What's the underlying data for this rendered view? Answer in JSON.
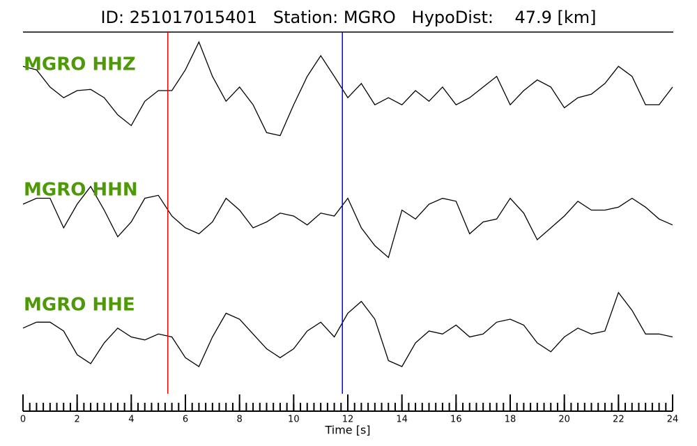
{
  "chart_data": {
    "type": "seismogram",
    "title": "ID: 251017015401   Station: MGRO   HypoDist:    47.9 [km]",
    "xlabel": "Time [s]",
    "xlim": [
      0,
      24
    ],
    "xticks": [
      0,
      2,
      4,
      6,
      8,
      10,
      12,
      14,
      16,
      18,
      20,
      22,
      24
    ],
    "minor_xtick_step": 0.25,
    "ylim": [
      -1,
      1
    ],
    "label_color": "#4e9a06",
    "markers": [
      {
        "x": 5.35,
        "color": "#ff0000"
      },
      {
        "x": 11.8,
        "color": "#0000ff"
      }
    ],
    "x": [
      0,
      0.5,
      1,
      1.5,
      2,
      2.5,
      3,
      3.5,
      4,
      4.5,
      5,
      5.5,
      6,
      6.5,
      7,
      7.5,
      8,
      8.5,
      9,
      9.5,
      10,
      10.5,
      11,
      11.5,
      12,
      12.5,
      13,
      13.5,
      14,
      14.5,
      15,
      15.5,
      16,
      16.5,
      17,
      17.5,
      18,
      18.5,
      19,
      19.5,
      20,
      20.5,
      21,
      21.5,
      22,
      22.5,
      23,
      23.5,
      24
    ],
    "series": [
      {
        "name": "MGRO HHZ",
        "color": "#000000",
        "values": [
          0.41,
          0.35,
          0.06,
          -0.12,
          0,
          0.02,
          -0.12,
          -0.41,
          -0.59,
          -0.18,
          0,
          0,
          0.35,
          0.82,
          0.24,
          -0.18,
          0.06,
          -0.24,
          -0.71,
          -0.76,
          -0.24,
          0.24,
          0.59,
          0.24,
          -0.12,
          0.12,
          -0.24,
          -0.12,
          -0.24,
          0,
          -0.18,
          0.06,
          -0.24,
          -0.12,
          0.06,
          0.24,
          -0.24,
          0,
          0.18,
          0.06,
          -0.29,
          -0.12,
          -0.06,
          0.12,
          0.41,
          0.24,
          -0.24,
          -0.24,
          0.06
        ]
      },
      {
        "name": "MGRO HHN",
        "color": "#000000",
        "values": [
          0.2,
          0.3,
          0.3,
          -0.2,
          0.2,
          0.5,
          0.1,
          -0.35,
          -0.1,
          0.3,
          0.35,
          0,
          -0.2,
          -0.3,
          -0.1,
          0.3,
          0.1,
          -0.2,
          -0.1,
          0.05,
          0,
          -0.15,
          0.05,
          0,
          0.3,
          -0.2,
          -0.5,
          -0.7,
          0.1,
          -0.05,
          0.2,
          0.3,
          0.25,
          -0.3,
          -0.1,
          -0.05,
          0.3,
          0.05,
          -0.4,
          -0.2,
          0,
          0.25,
          0.1,
          0.1,
          0.15,
          0.3,
          0.15,
          -0.05,
          -0.15
        ]
      },
      {
        "name": "MGRO HHE",
        "color": "#000000",
        "values": [
          0.05,
          0.15,
          0.15,
          0,
          -0.4,
          -0.55,
          -0.2,
          0.05,
          -0.1,
          -0.15,
          -0.05,
          -0.1,
          -0.45,
          -0.6,
          -0.1,
          0.3,
          0.2,
          -0.05,
          -0.3,
          -0.45,
          -0.3,
          0,
          0.15,
          -0.1,
          0.3,
          0.5,
          0.2,
          -0.5,
          -0.6,
          -0.2,
          0,
          -0.05,
          0.1,
          -0.1,
          -0.05,
          0.15,
          0.2,
          0.1,
          -0.2,
          -0.35,
          -0.1,
          0.05,
          -0.05,
          0,
          0.65,
          0.35,
          -0.05,
          -0.05,
          -0.1
        ]
      }
    ]
  }
}
